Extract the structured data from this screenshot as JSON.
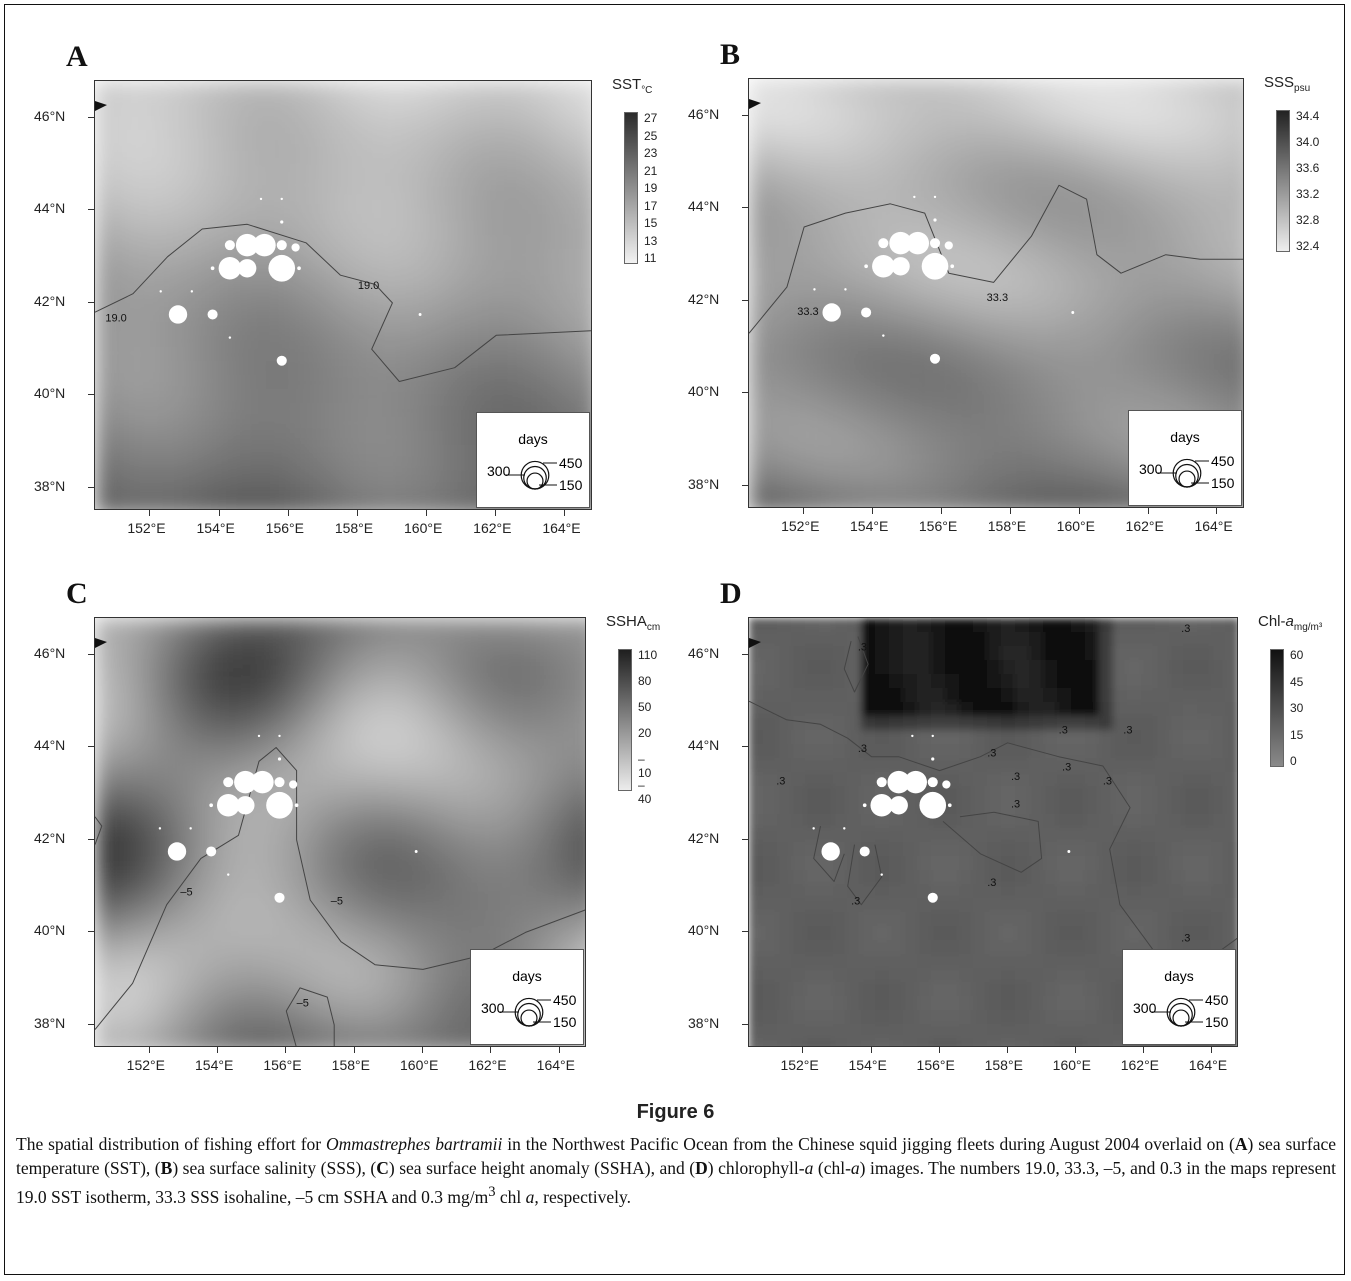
{
  "figure": {
    "title": "Figure 6",
    "caption_parts": [
      {
        "t": "The spatial distribution of fishing effort for "
      },
      {
        "t": "Ommastrephes bartramii",
        "i": true
      },
      {
        "t": " in the Northwest Pacific Ocean from the Chinese squid jigging fleets during August 2004 overlaid on ("
      },
      {
        "t": "A",
        "b": true
      },
      {
        "t": ") sea surface temperature (SST), ("
      },
      {
        "t": "B",
        "b": true
      },
      {
        "t": ") sea surface salinity (SSS), ("
      },
      {
        "t": "C",
        "b": true
      },
      {
        "t": ") sea surface height anomaly (SSHA), and ("
      },
      {
        "t": "D",
        "b": true
      },
      {
        "t": ") chlorophyll-"
      },
      {
        "t": "a",
        "i": true
      },
      {
        "t": " (chl-"
      },
      {
        "t": "a",
        "i": true
      },
      {
        "t": ") images. The numbers 19.0, 33.3, –5, and 0.3 in the maps represent 19.0 SST isotherm, 33.3 SSS isohaline, –5 cm SSHA and 0.3 mg/m"
      },
      {
        "t": "3",
        "sup": true
      },
      {
        "t": " chl "
      },
      {
        "t": "a,",
        "i": true
      },
      {
        "t": " respectively."
      }
    ]
  },
  "axes": {
    "lon_labels": [
      "152°E",
      "154°E",
      "156°E",
      "158°E",
      "160°E",
      "162°E",
      "164°E"
    ],
    "lon_values": [
      152,
      154,
      156,
      158,
      160,
      162,
      164
    ],
    "lat_labels": [
      "46°N",
      "44°N",
      "42°N",
      "40°N",
      "38°N"
    ],
    "lat_values": [
      46,
      44,
      42,
      40,
      38
    ],
    "lon_range": [
      150.4,
      164.8
    ],
    "lat_range": [
      37.5,
      46.8
    ]
  },
  "legend": {
    "title": "days",
    "labels": [
      "300",
      "450",
      "150"
    ],
    "values": [
      300,
      450,
      150
    ]
  },
  "fishing_effort": [
    {
      "lon": 154.3,
      "lat": 43.25,
      "days": 60
    },
    {
      "lon": 154.8,
      "lat": 43.25,
      "days": 300
    },
    {
      "lon": 155.3,
      "lat": 43.25,
      "days": 300
    },
    {
      "lon": 155.8,
      "lat": 43.25,
      "days": 60
    },
    {
      "lon": 156.2,
      "lat": 43.2,
      "days": 40
    },
    {
      "lon": 154.3,
      "lat": 42.75,
      "days": 300
    },
    {
      "lon": 154.8,
      "lat": 42.75,
      "days": 200
    },
    {
      "lon": 155.8,
      "lat": 42.75,
      "days": 420
    },
    {
      "lon": 153.8,
      "lat": 42.75,
      "days": 8
    },
    {
      "lon": 156.3,
      "lat": 42.75,
      "days": 8
    },
    {
      "lon": 152.8,
      "lat": 41.75,
      "days": 200
    },
    {
      "lon": 153.8,
      "lat": 41.75,
      "days": 60
    },
    {
      "lon": 155.8,
      "lat": 40.75,
      "days": 60
    },
    {
      "lon": 155.8,
      "lat": 43.75,
      "days": 6
    },
    {
      "lon": 155.2,
      "lat": 44.25,
      "days": 3
    },
    {
      "lon": 155.8,
      "lat": 44.25,
      "days": 3
    },
    {
      "lon": 159.8,
      "lat": 41.75,
      "days": 5
    },
    {
      "lon": 152.3,
      "lat": 42.25,
      "days": 2
    },
    {
      "lon": 153.2,
      "lat": 42.25,
      "days": 2
    },
    {
      "lon": 154.3,
      "lat": 41.25,
      "days": 2
    }
  ],
  "panels": [
    {
      "letter": "A",
      "cb_title": "SST",
      "cb_sub": "°C",
      "cb_ticks": [
        "27",
        "25",
        "23",
        "21",
        "19",
        "17",
        "15",
        "13",
        "11"
      ],
      "cb_range": [
        11,
        28
      ],
      "cb_colors": [
        "#f2f2f2",
        "#2b2b2b"
      ],
      "contour_labels": [
        {
          "text": "19.0",
          "lon": 158.0,
          "lat": 42.3
        },
        {
          "text": "19.0",
          "lon": 150.7,
          "lat": 41.6
        }
      ]
    },
    {
      "letter": "B",
      "cb_title": "SSS",
      "cb_sub": "psu",
      "cb_ticks": [
        "34.4",
        "34.0",
        "33.6",
        "33.2",
        "32.8",
        "32.4"
      ],
      "cb_range": [
        32.3,
        34.7
      ],
      "cb_colors": [
        "#eeeeee",
        "#222222"
      ],
      "contour_labels": [
        {
          "text": "33.3",
          "lon": 157.3,
          "lat": 42.0
        },
        {
          "text": "33.3",
          "lon": 151.8,
          "lat": 41.7
        }
      ]
    },
    {
      "letter": "C",
      "cb_title": "SSHA",
      "cb_sub": "cm",
      "cb_ticks": [
        "110",
        "80",
        "50",
        "20",
        "–10",
        "–40"
      ],
      "cb_range": [
        -45,
        120
      ],
      "cb_colors": [
        "#ececec",
        "#1f1f1f"
      ],
      "contour_labels": [
        {
          "text": "–5",
          "lon": 152.9,
          "lat": 40.8
        },
        {
          "text": "–5",
          "lon": 157.3,
          "lat": 40.6
        },
        {
          "text": "–5",
          "lon": 156.3,
          "lat": 38.4
        }
      ]
    },
    {
      "letter": "D",
      "cb_title": "Chl-",
      "cb_title_italic": "a",
      "cb_sub": "mg/m³",
      "cb_ticks": [
        "60",
        "45",
        "30",
        "15",
        "0"
      ],
      "cb_range": [
        0,
        75
      ],
      "cb_colors": [
        "#8a8a8a",
        "#111111"
      ],
      "contour_labels": [
        {
          "text": ".3",
          "lon": 153.6,
          "lat": 46.1
        },
        {
          "text": ".3",
          "lon": 163.1,
          "lat": 46.5
        },
        {
          "text": ".3",
          "lon": 153.6,
          "lat": 43.9
        },
        {
          "text": ".3",
          "lon": 151.2,
          "lat": 43.2
        },
        {
          "text": ".3",
          "lon": 157.4,
          "lat": 43.8
        },
        {
          "text": ".3",
          "lon": 159.5,
          "lat": 44.3
        },
        {
          "text": ".3",
          "lon": 161.4,
          "lat": 44.3
        },
        {
          "text": ".3",
          "lon": 158.1,
          "lat": 43.3
        },
        {
          "text": ".3",
          "lon": 159.6,
          "lat": 43.5
        },
        {
          "text": ".3",
          "lon": 160.8,
          "lat": 43.2
        },
        {
          "text": ".3",
          "lon": 158.1,
          "lat": 42.7
        },
        {
          "text": ".3",
          "lon": 157.4,
          "lat": 41.0
        },
        {
          "text": ".3",
          "lon": 153.4,
          "lat": 40.6
        },
        {
          "text": ".3",
          "lon": 163.1,
          "lat": 39.8
        }
      ]
    }
  ]
}
